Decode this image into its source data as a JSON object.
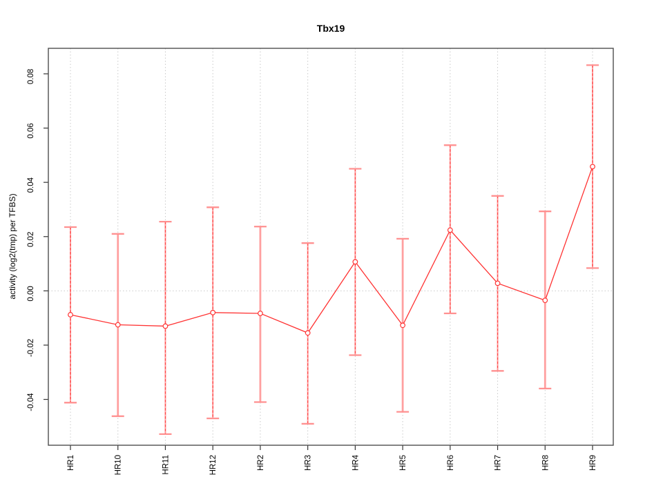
{
  "chart_data": {
    "type": "line",
    "title": "Tbx19",
    "xlabel": "",
    "ylabel": "activity (log2(tmp) per TFBS)",
    "legend": "none",
    "grid": "vertical dotted gridline at each category; dotted horizontal reference line at y=0",
    "ylim": [
      -0.0569,
      0.0894
    ],
    "y_ticks": [
      {
        "value": 0.08,
        "label": "0.08"
      },
      {
        "value": 0.06,
        "label": "0.06"
      },
      {
        "value": 0.04,
        "label": "0.04"
      },
      {
        "value": 0.02,
        "label": "0.02"
      },
      {
        "value": 0.0,
        "label": "0.00"
      },
      {
        "value": -0.02,
        "label": "-0.02"
      },
      {
        "value": -0.04,
        "label": "-0.04"
      }
    ],
    "categories": [
      "HR1",
      "HR10",
      "HR11",
      "HR12",
      "HR2",
      "HR3",
      "HR4",
      "HR5",
      "HR6",
      "HR7",
      "HR8",
      "HR9"
    ],
    "series": [
      {
        "name": "activity",
        "marker": "open-circle",
        "values": [
          -0.0088,
          -0.0125,
          -0.013,
          -0.008,
          -0.0083,
          -0.0155,
          0.0107,
          -0.0127,
          0.0224,
          0.0028,
          -0.0035,
          0.0458
        ],
        "error_low": [
          -0.0412,
          -0.0462,
          -0.0528,
          -0.047,
          -0.041,
          -0.049,
          -0.0237,
          -0.0446,
          -0.0083,
          -0.0295,
          -0.036,
          0.0084
        ],
        "error_high": [
          0.0235,
          0.021,
          0.0255,
          0.0308,
          0.0237,
          0.0176,
          0.045,
          0.0192,
          0.0537,
          0.035,
          0.0293,
          0.0832
        ],
        "bar_styles": [
          "dashed",
          "solid",
          "dashed",
          "dashed",
          "solid",
          "dashed",
          "dashed",
          "solid",
          "dashed",
          "dashed",
          "solid",
          "dashed"
        ]
      }
    ],
    "colors": {
      "line": "#ff3232",
      "marker_stroke": "#ff3232",
      "marker_fill": "#ffffff",
      "error_bar_solid": "#ffa0a0",
      "error_bar_dash": "#ff4747",
      "error_cap": "#ff9090",
      "gridline": "#c9c9c9",
      "zero_line": "#c9c9c9",
      "plot_border": "#4d4d4d",
      "tick": "#333333",
      "text": "#000000"
    }
  }
}
